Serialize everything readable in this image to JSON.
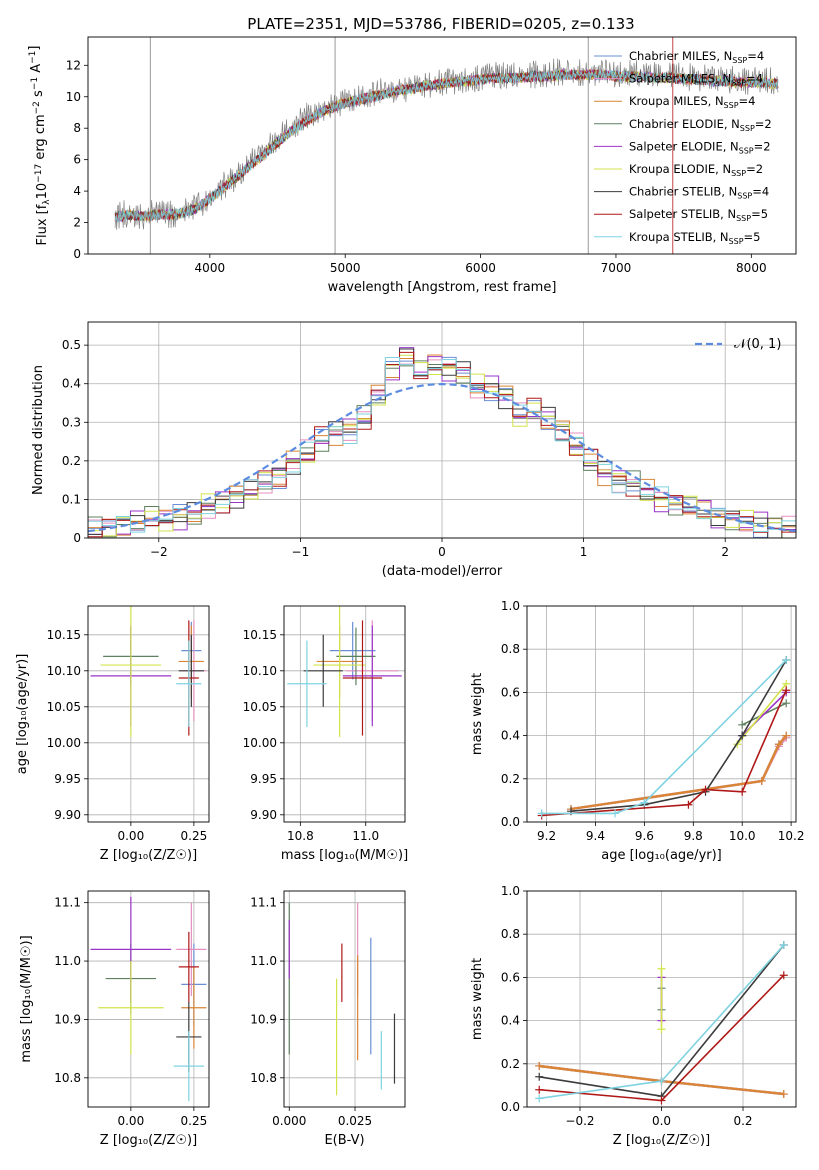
{
  "title": "PLATE=2351, MJD=53786, FIBERID=0205, z=0.133",
  "colors": {
    "Chabrier MILES": "#6a8fd6",
    "Salpeter MILES": "#e58fbf",
    "Kroupa MILES": "#d98535",
    "Chabrier ELODIE": "#5f8060",
    "Salpeter ELODIE": "#9a35c8",
    "Kroupa ELODIE": "#d2e34c",
    "Chabrier STELIB": "#3b3b3b",
    "Salpeter STELIB": "#b01818",
    "Kroupa STELIB": "#7fd3e0"
  },
  "chart_data": [
    {
      "id": "spectrum",
      "type": "line",
      "xlabel": "wavelength [Angstrom, rest frame]",
      "ylabel": "Flux [f",
      "xlim": [
        3100,
        8330
      ],
      "ylim": [
        0,
        13.8
      ],
      "xticks": [
        4000,
        5000,
        6000,
        7000,
        8000
      ],
      "yticks": [
        0,
        2,
        4,
        6,
        8,
        10,
        12
      ],
      "grid": false,
      "legend": "top-right",
      "data_x": [
        3300,
        3400,
        3500,
        3600,
        3700,
        3800,
        3900,
        4000,
        4100,
        4200,
        4300,
        4400,
        4500,
        4600,
        4700,
        4800,
        4900,
        5000,
        5100,
        5200,
        5300,
        5400,
        5500,
        5600,
        5700,
        5800,
        5900,
        6000,
        6100,
        6200,
        6300,
        6400,
        6500,
        6600,
        6700,
        6800,
        6900,
        7000,
        7100,
        7200,
        7300,
        7400,
        7500,
        7600,
        7700,
        7800,
        7900,
        8000,
        8100,
        8200
      ],
      "data_y": [
        2.4,
        2.6,
        2.4,
        2.6,
        2.5,
        2.7,
        3.0,
        3.6,
        4.3,
        5.0,
        5.8,
        6.5,
        7.4,
        8.0,
        8.7,
        9.1,
        9.5,
        9.7,
        9.9,
        10.1,
        10.4,
        10.5,
        10.6,
        10.8,
        10.9,
        11.0,
        11.1,
        11.2,
        11.3,
        11.4,
        11.3,
        11.4,
        11.5,
        11.6,
        11.5,
        11.6,
        11.5,
        11.4,
        11.5,
        11.4,
        11.4,
        11.3,
        11.3,
        11.2,
        11.2,
        11.1,
        11.1,
        11.0,
        11.0,
        11.0
      ],
      "model_y": [
        2.3,
        2.5,
        2.4,
        2.5,
        2.5,
        2.6,
        2.9,
        3.5,
        4.2,
        4.9,
        5.6,
        6.3,
        7.1,
        7.8,
        8.4,
        8.9,
        9.3,
        9.6,
        9.8,
        10.0,
        10.2,
        10.4,
        10.5,
        10.7,
        10.8,
        10.9,
        11.0,
        11.1,
        11.2,
        11.2,
        11.2,
        11.3,
        11.3,
        11.4,
        11.4,
        11.4,
        11.4,
        11.3,
        11.3,
        11.3,
        11.2,
        11.2,
        11.1,
        11.1,
        11.0,
        11.0,
        10.9,
        10.9,
        10.9,
        10.8
      ],
      "series": [
        {
          "name": "Chabrier MILES",
          "n": "4"
        },
        {
          "name": "Salpeter MILES",
          "n": "4"
        },
        {
          "name": "Kroupa MILES",
          "n": "4"
        },
        {
          "name": "Chabrier ELODIE",
          "n": "2"
        },
        {
          "name": "Salpeter ELODIE",
          "n": "2"
        },
        {
          "name": "Kroupa ELODIE",
          "n": "2"
        },
        {
          "name": "Chabrier STELIB",
          "n": "4"
        },
        {
          "name": "Salpeter STELIB",
          "n": "5"
        },
        {
          "name": "Kroupa STELIB",
          "n": "5"
        }
      ]
    },
    {
      "id": "residuals",
      "type": "bar",
      "xlabel": "(data-model)/error",
      "ylabel": "Normed distribution",
      "xlim": [
        -2.5,
        2.5
      ],
      "ylim": [
        0,
        0.56
      ],
      "xticks": [
        -2,
        -1,
        0,
        1,
        2
      ],
      "yticks": [
        0.0,
        0.1,
        0.2,
        0.3,
        0.4,
        0.5
      ],
      "grid": true,
      "legend": "top-right",
      "bin_width": 0.1,
      "bins_left": [
        -2.5,
        -2.4,
        -2.3,
        -2.2,
        -2.1,
        -2.0,
        -1.9,
        -1.8,
        -1.7,
        -1.6,
        -1.5,
        -1.4,
        -1.3,
        -1.2,
        -1.1,
        -1.0,
        -0.9,
        -0.8,
        -0.7,
        -0.6,
        -0.5,
        -0.4,
        -0.3,
        -0.2,
        -0.1,
        0.0,
        0.1,
        0.2,
        0.3,
        0.4,
        0.5,
        0.6,
        0.7,
        0.8,
        0.9,
        1.0,
        1.1,
        1.2,
        1.3,
        1.4,
        1.5,
        1.6,
        1.7,
        1.8,
        1.9,
        2.0,
        2.1,
        2.2,
        2.3,
        2.4
      ],
      "hist_values": [
        0.025,
        0.03,
        0.035,
        0.04,
        0.05,
        0.05,
        0.055,
        0.06,
        0.08,
        0.095,
        0.11,
        0.125,
        0.145,
        0.16,
        0.195,
        0.22,
        0.255,
        0.275,
        0.28,
        0.31,
        0.37,
        0.44,
        0.47,
        0.43,
        0.45,
        0.44,
        0.43,
        0.39,
        0.39,
        0.37,
        0.32,
        0.33,
        0.31,
        0.28,
        0.24,
        0.2,
        0.17,
        0.15,
        0.14,
        0.12,
        0.1,
        0.09,
        0.08,
        0.07,
        0.055,
        0.05,
        0.04,
        0.035,
        0.03,
        0.025
      ],
      "gaussian_label": "𝒩(0, 1)"
    },
    {
      "id": "age-vs-Z",
      "type": "scatter",
      "xlabel": "Z [log₁₀(Z/Z☉)]",
      "ylabel": "age  [log₁₀(age/yr)]",
      "xlim": [
        -0.17,
        0.31
      ],
      "ylim": [
        9.89,
        10.19
      ],
      "xticks": [
        "0.00",
        "0.25"
      ],
      "yticks": [
        "9.90",
        "9.95",
        "10.00",
        "10.05",
        "10.10",
        "10.15"
      ],
      "grid": true,
      "points": [
        {
          "series": "Chabrier MILES",
          "x": 0.24,
          "xerr": 0.04,
          "y": 10.128,
          "yerr": 0.04
        },
        {
          "series": "Salpeter MILES",
          "x": 0.25,
          "xerr": 0.05,
          "y": 10.1,
          "yerr": 0.07
        },
        {
          "series": "Kroupa MILES",
          "x": 0.24,
          "xerr": 0.05,
          "y": 10.113,
          "yerr": 0.05
        },
        {
          "series": "Chabrier ELODIE",
          "x": 0.0,
          "xerr": 0.11,
          "y": 10.12,
          "yerr": 0.04
        },
        {
          "series": "Salpeter ELODIE",
          "x": 0.0,
          "xerr": 0.16,
          "y": 10.093,
          "yerr": 0.07
        },
        {
          "series": "Kroupa ELODIE",
          "x": 0.0,
          "xerr": 0.12,
          "y": 10.108,
          "yerr": 0.1
        },
        {
          "series": "Chabrier STELIB",
          "x": 0.24,
          "xerr": 0.05,
          "y": 10.1,
          "yerr": 0.05
        },
        {
          "series": "Salpeter STELIB",
          "x": 0.23,
          "xerr": 0.04,
          "y": 10.09,
          "yerr": 0.08
        },
        {
          "series": "Kroupa STELIB",
          "x": 0.23,
          "xerr": 0.05,
          "y": 10.082,
          "yerr": 0.06
        }
      ]
    },
    {
      "id": "age-vs-mass",
      "type": "scatter",
      "xlabel": "mass [log₁₀(M/M☉)]",
      "ylabel": "",
      "xlim": [
        10.75,
        11.12
      ],
      "ylim": [
        9.89,
        10.19
      ],
      "xticks": [
        "10.8",
        "11.0"
      ],
      "yticks": [
        "9.90",
        "9.95",
        "10.00",
        "10.05",
        "10.10",
        "10.15"
      ],
      "grid": true,
      "points": [
        {
          "series": "Chabrier MILES",
          "x": 10.96,
          "xerr": 0.07,
          "y": 10.128,
          "yerr": 0.04
        },
        {
          "series": "Salpeter MILES",
          "x": 11.02,
          "xerr": 0.08,
          "y": 10.1,
          "yerr": 0.07
        },
        {
          "series": "Kroupa MILES",
          "x": 10.92,
          "xerr": 0.07,
          "y": 10.113,
          "yerr": 0.05
        },
        {
          "series": "Chabrier ELODIE",
          "x": 10.97,
          "xerr": 0.06,
          "y": 10.12,
          "yerr": 0.04
        },
        {
          "series": "Salpeter ELODIE",
          "x": 11.02,
          "xerr": 0.09,
          "y": 10.093,
          "yerr": 0.07
        },
        {
          "series": "Kroupa ELODIE",
          "x": 10.92,
          "xerr": 0.08,
          "y": 10.108,
          "yerr": 0.1
        },
        {
          "series": "Chabrier STELIB",
          "x": 10.87,
          "xerr": 0.06,
          "y": 10.1,
          "yerr": 0.05
        },
        {
          "series": "Salpeter STELIB",
          "x": 10.99,
          "xerr": 0.06,
          "y": 10.09,
          "yerr": 0.08
        },
        {
          "series": "Kroupa STELIB",
          "x": 10.82,
          "xerr": 0.06,
          "y": 10.082,
          "yerr": 0.06
        }
      ]
    },
    {
      "id": "weight-vs-age",
      "type": "line",
      "xlabel": "age  [log₁₀(age/yr)]",
      "ylabel": "mass weight",
      "xlim": [
        9.12,
        10.22
      ],
      "ylim": [
        0,
        1.0
      ],
      "xticks": [
        "9.2",
        "9.4",
        "9.6",
        "9.8",
        "10.0",
        "10.2"
      ],
      "yticks": [
        "0.0",
        "0.2",
        "0.4",
        "0.6",
        "0.8",
        "1.0"
      ],
      "grid": true,
      "series": [
        {
          "name": "Chabrier MILES",
          "x": [
            9.3,
            10.08,
            10.15,
            10.18
          ],
          "y": [
            0.06,
            0.19,
            0.36,
            0.4
          ]
        },
        {
          "name": "Salpeter MILES",
          "x": [
            9.3,
            10.08,
            10.15,
            10.18
          ],
          "y": [
            0.06,
            0.19,
            0.35,
            0.39
          ]
        },
        {
          "name": "Kroupa MILES",
          "x": [
            9.3,
            10.08,
            10.15,
            10.18
          ],
          "y": [
            0.06,
            0.19,
            0.36,
            0.4
          ]
        },
        {
          "name": "Chabrier ELODIE",
          "x": [
            10.0,
            10.18
          ],
          "y": [
            0.45,
            0.55
          ]
        },
        {
          "name": "Salpeter ELODIE",
          "x": [
            10.0,
            10.18
          ],
          "y": [
            0.4,
            0.6
          ]
        },
        {
          "name": "Kroupa ELODIE",
          "x": [
            9.98,
            10.18
          ],
          "y": [
            0.36,
            0.64
          ]
        },
        {
          "name": "Chabrier STELIB",
          "x": [
            9.3,
            9.6,
            9.85,
            10.0,
            10.18
          ],
          "y": [
            0.05,
            0.08,
            0.14,
            0.4,
            0.75
          ]
        },
        {
          "name": "Salpeter STELIB",
          "x": [
            9.18,
            9.78,
            9.85,
            10.0,
            10.18
          ],
          "y": [
            0.03,
            0.08,
            0.15,
            0.14,
            0.61
          ]
        },
        {
          "name": "Kroupa STELIB",
          "x": [
            9.18,
            9.48,
            9.6,
            10.18
          ],
          "y": [
            0.04,
            0.04,
            0.09,
            0.75
          ]
        }
      ]
    },
    {
      "id": "mass-vs-Z",
      "type": "scatter",
      "xlabel": "Z [log₁₀(Z/Z☉)]",
      "ylabel": "mass [log₁₀(M/M☉)]",
      "xlim": [
        -0.17,
        0.31
      ],
      "ylim": [
        10.75,
        11.12
      ],
      "xticks": [
        "0.00",
        "0.25"
      ],
      "yticks": [
        "10.8",
        "10.9",
        "11.0",
        "11.1"
      ],
      "grid": true,
      "points": [
        {
          "series": "Chabrier MILES",
          "x": 0.25,
          "xerr": 0.05,
          "y": 10.96,
          "yerr": 0.07
        },
        {
          "series": "Salpeter MILES",
          "x": 0.24,
          "xerr": 0.06,
          "y": 11.02,
          "yerr": 0.08
        },
        {
          "series": "Kroupa MILES",
          "x": 0.25,
          "xerr": 0.05,
          "y": 10.92,
          "yerr": 0.07
        },
        {
          "series": "Chabrier ELODIE",
          "x": 0.0,
          "xerr": 0.1,
          "y": 10.97,
          "yerr": 0.06
        },
        {
          "series": "Salpeter ELODIE",
          "x": 0.0,
          "xerr": 0.16,
          "y": 11.02,
          "yerr": 0.09
        },
        {
          "series": "Kroupa ELODIE",
          "x": 0.0,
          "xerr": 0.13,
          "y": 10.92,
          "yerr": 0.08
        },
        {
          "series": "Chabrier STELIB",
          "x": 0.23,
          "xerr": 0.05,
          "y": 10.87,
          "yerr": 0.06
        },
        {
          "series": "Salpeter STELIB",
          "x": 0.23,
          "xerr": 0.04,
          "y": 10.99,
          "yerr": 0.06
        },
        {
          "series": "Kroupa STELIB",
          "x": 0.23,
          "xerr": 0.06,
          "y": 10.82,
          "yerr": 0.06
        }
      ]
    },
    {
      "id": "mass-vs-EBV",
      "type": "scatter",
      "xlabel": "E(B-V)",
      "ylabel": "",
      "xlim": [
        -0.002,
        0.044
      ],
      "ylim": [
        10.75,
        11.12
      ],
      "xticks": [
        "0.000",
        "0.025"
      ],
      "yticks": [
        "10.8",
        "10.9",
        "11.0",
        "11.1"
      ],
      "grid": true,
      "points": [
        {
          "series": "Chabrier MILES",
          "x": 0.031,
          "y": 10.94,
          "yerr": 0.1
        },
        {
          "series": "Salpeter MILES",
          "x": 0.026,
          "y": 11.02,
          "yerr": 0.08
        },
        {
          "series": "Kroupa MILES",
          "x": 0.026,
          "y": 10.92,
          "yerr": 0.09
        },
        {
          "series": "Chabrier ELODIE",
          "x": 0.0,
          "y": 10.97,
          "yerr": 0.13
        },
        {
          "series": "Salpeter ELODIE",
          "x": 0.0,
          "y": 11.02,
          "yerr": 0.05
        },
        {
          "series": "Kroupa ELODIE",
          "x": 0.018,
          "y": 10.87,
          "yerr": 0.1
        },
        {
          "series": "Chabrier STELIB",
          "x": 0.04,
          "y": 10.85,
          "yerr": 0.06
        },
        {
          "series": "Salpeter STELIB",
          "x": 0.02,
          "y": 10.98,
          "yerr": 0.05
        },
        {
          "series": "Kroupa STELIB",
          "x": 0.035,
          "y": 10.83,
          "yerr": 0.05
        }
      ]
    },
    {
      "id": "weight-vs-Z",
      "type": "line",
      "xlabel": "Z [log₁₀(Z/Z☉)]",
      "ylabel": "mass weight",
      "xlim": [
        -0.33,
        0.33
      ],
      "ylim": [
        0,
        1.0
      ],
      "xticks": [
        "-0.2",
        "0.0",
        "0.2"
      ],
      "yticks": [
        "0.0",
        "0.2",
        "0.4",
        "0.6",
        "0.8",
        "1.0"
      ],
      "grid": true,
      "series": [
        {
          "name": "Chabrier MILES",
          "x": [
            -0.3,
            0.0,
            0.3
          ],
          "y": [
            0.19,
            0.12,
            0.06
          ]
        },
        {
          "name": "Salpeter MILES",
          "x": [
            -0.3,
            0.0,
            0.3
          ],
          "y": [
            0.19,
            0.12,
            0.06
          ]
        },
        {
          "name": "Kroupa MILES",
          "x": [
            -0.3,
            0.0,
            0.3
          ],
          "y": [
            0.19,
            0.12,
            0.06
          ]
        },
        {
          "name": "Chabrier ELODIE",
          "x": [
            0.0,
            0.0
          ],
          "y": [
            0.45,
            0.55
          ]
        },
        {
          "name": "Salpeter ELODIE",
          "x": [
            0.0,
            0.0
          ],
          "y": [
            0.4,
            0.6
          ]
        },
        {
          "name": "Kroupa ELODIE",
          "x": [
            0.0,
            0.0
          ],
          "y": [
            0.36,
            0.64
          ]
        },
        {
          "name": "Chabrier STELIB",
          "x": [
            -0.3,
            0.0,
            0.3
          ],
          "y": [
            0.14,
            0.05,
            0.75
          ]
        },
        {
          "name": "Salpeter STELIB",
          "x": [
            -0.3,
            0.0,
            0.3
          ],
          "y": [
            0.08,
            0.03,
            0.61
          ]
        },
        {
          "name": "Kroupa STELIB",
          "x": [
            -0.3,
            0.0,
            0.3
          ],
          "y": [
            0.04,
            0.12,
            0.75
          ]
        }
      ]
    }
  ]
}
